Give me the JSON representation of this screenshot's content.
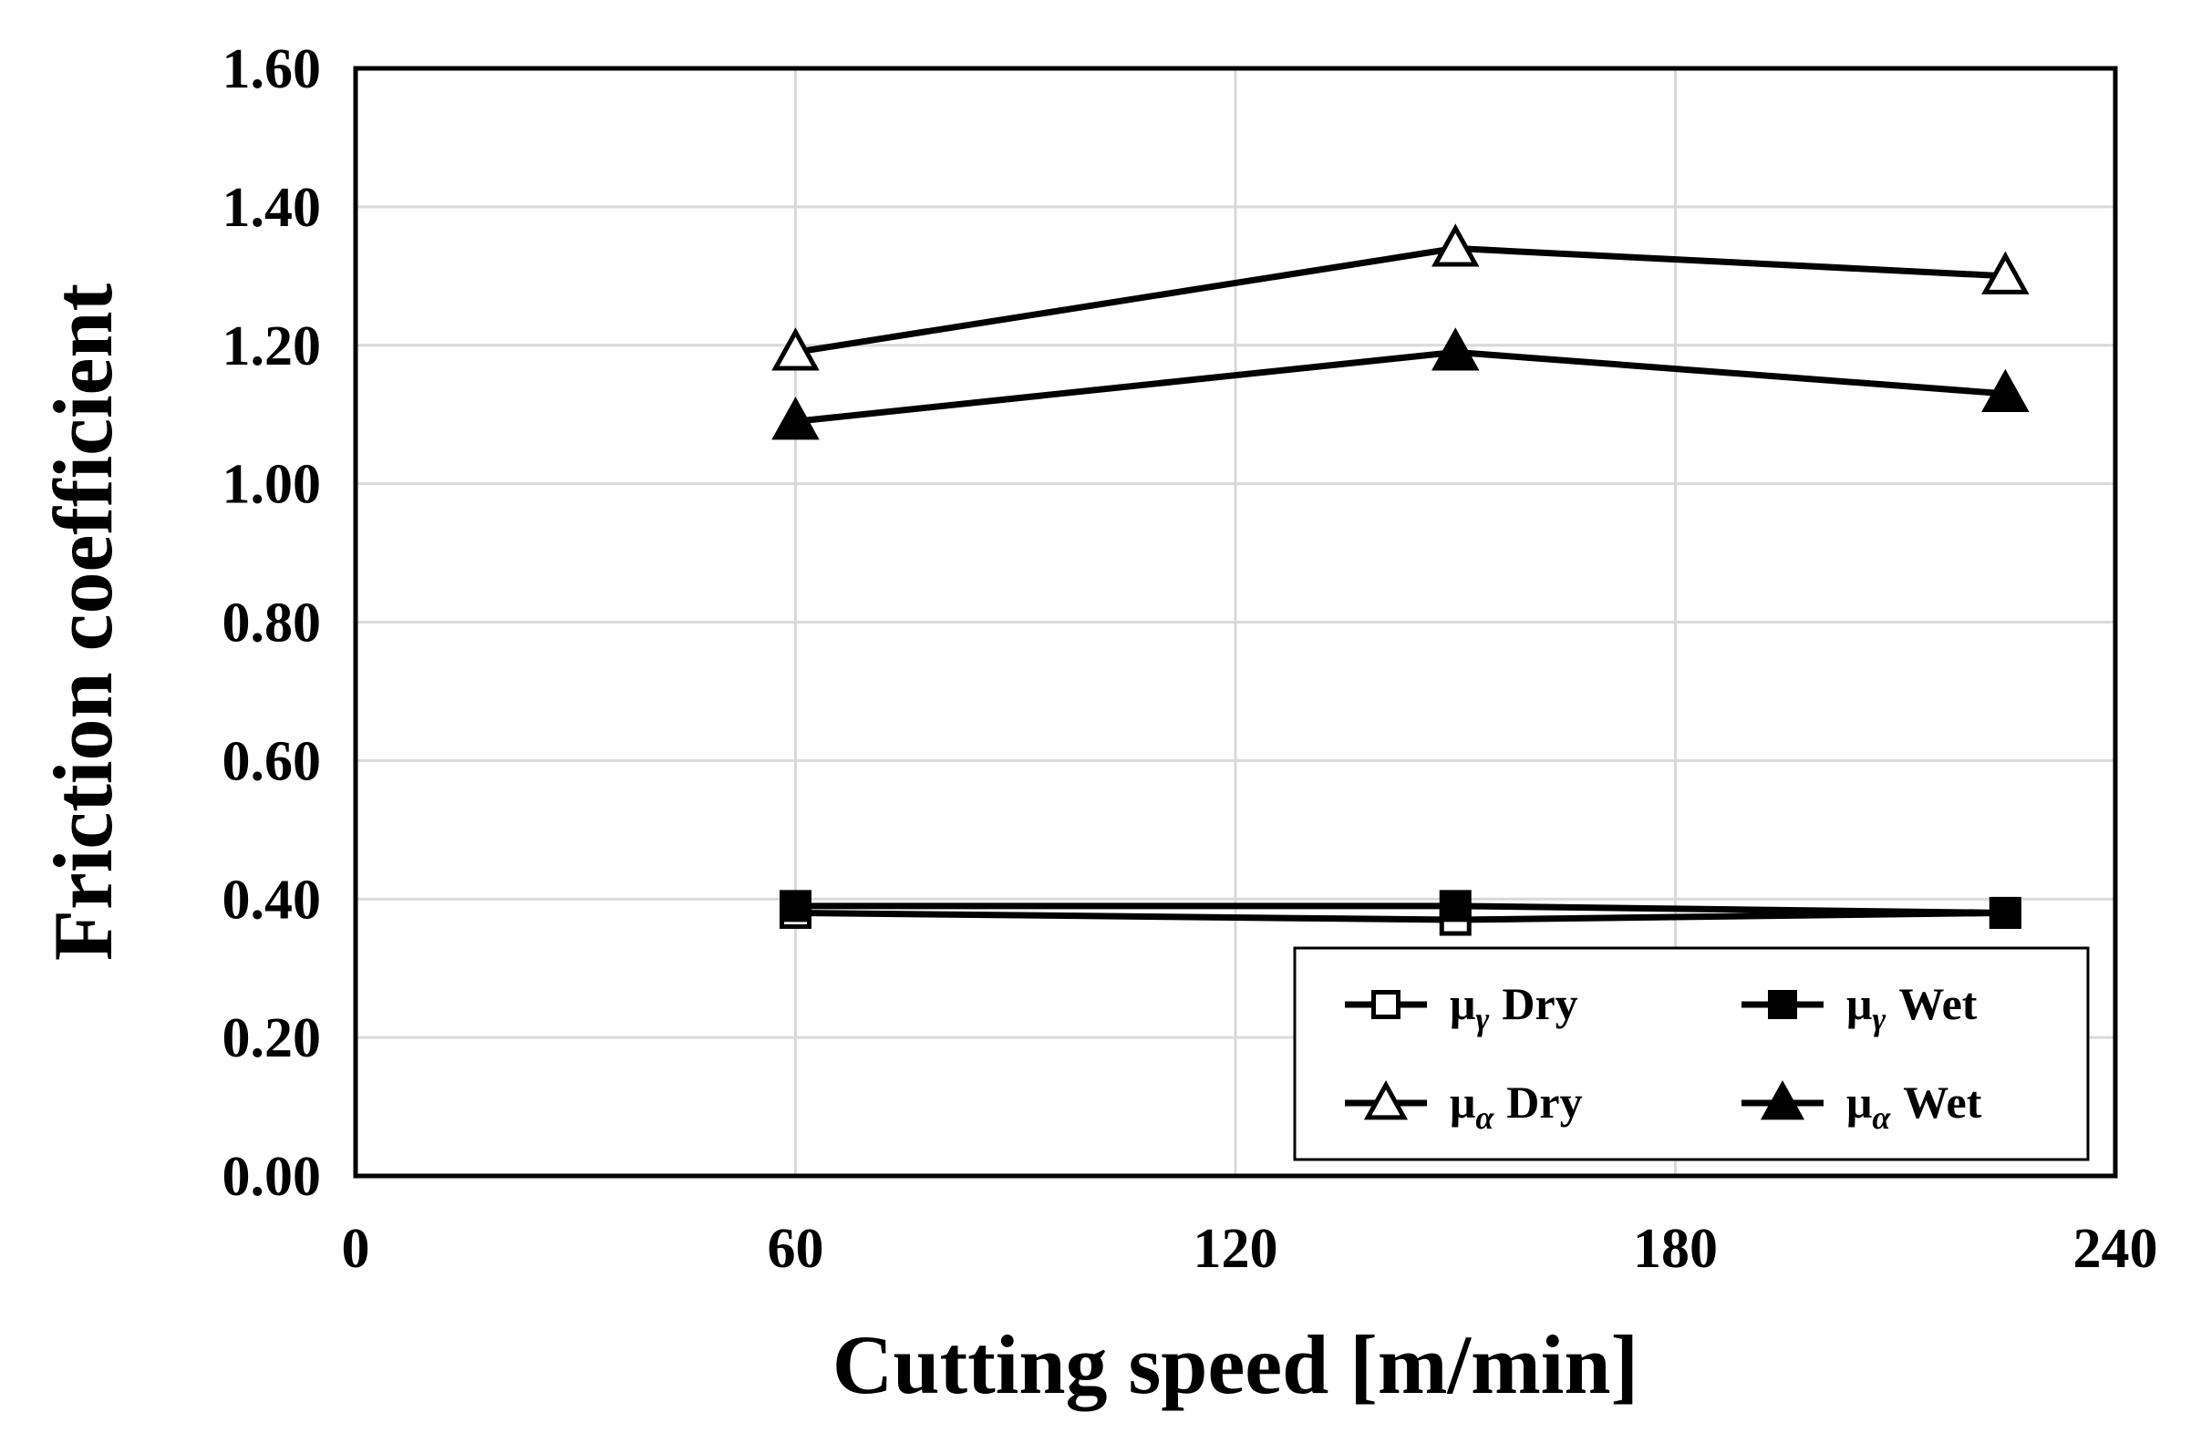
{
  "chart_data": {
    "type": "line",
    "title": "",
    "xlabel": "Cutting speed [m/min]",
    "ylabel": "Friction coefficient",
    "xlim": [
      0,
      240
    ],
    "ylim": [
      0,
      1.6
    ],
    "xticks": [
      "0",
      "60",
      "120",
      "180",
      "240"
    ],
    "yticks": [
      "0.00",
      "0.20",
      "0.40",
      "0.60",
      "0.80",
      "1.00",
      "1.20",
      "1.40",
      "1.60"
    ],
    "grid": true,
    "legend_position": "bottom-right",
    "x": [
      60,
      150,
      225
    ],
    "series": [
      {
        "name": "μγ Dry",
        "symbol": "μ",
        "subscript": "γ",
        "condition": "Dry",
        "marker": "square-open",
        "values": [
          0.38,
          0.37,
          0.38
        ]
      },
      {
        "name": "μγ Wet",
        "symbol": "μ",
        "subscript": "γ",
        "condition": "Wet",
        "marker": "square-filled",
        "values": [
          0.39,
          0.39,
          0.38
        ]
      },
      {
        "name": "μα Dry",
        "symbol": "μ",
        "subscript": "α",
        "condition": "Dry",
        "marker": "triangle-open",
        "values": [
          1.19,
          1.34,
          1.3
        ]
      },
      {
        "name": "μα Wet",
        "symbol": "μ",
        "subscript": "α",
        "condition": "Wet",
        "marker": "triangle-filled",
        "values": [
          1.09,
          1.19,
          1.13
        ]
      }
    ]
  }
}
